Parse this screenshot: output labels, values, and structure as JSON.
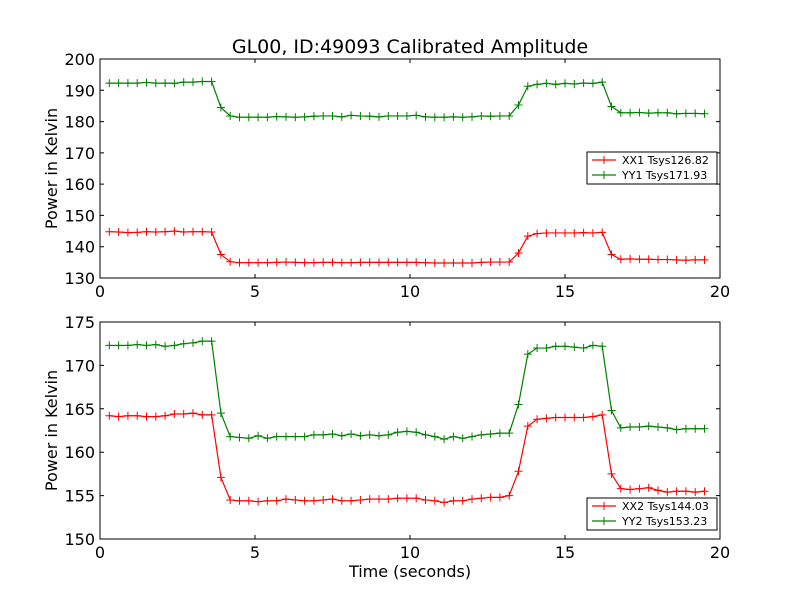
{
  "title": "GL00, ID:49093 Calibrated Amplitude",
  "xlabel": "Time (seconds)",
  "chart_data": [
    {
      "type": "line",
      "ylabel": "Power in Kelvin",
      "xlim": [
        0,
        20
      ],
      "ylim": [
        130,
        200
      ],
      "xticks": [
        0,
        5,
        10,
        15,
        20
      ],
      "yticks": [
        130,
        140,
        150,
        160,
        170,
        180,
        190,
        200
      ],
      "grid": false,
      "legend": "center-right",
      "x": [
        0.3,
        0.6,
        0.9,
        1.2,
        1.5,
        1.8,
        2.1,
        2.4,
        2.7,
        3.0,
        3.3,
        3.6,
        3.9,
        4.2,
        4.5,
        4.8,
        5.1,
        5.4,
        5.7,
        6.0,
        6.3,
        6.6,
        6.9,
        7.2,
        7.5,
        7.8,
        8.1,
        8.4,
        8.7,
        9.0,
        9.3,
        9.6,
        9.9,
        10.2,
        10.5,
        10.8,
        11.1,
        11.4,
        11.7,
        12.0,
        12.3,
        12.6,
        12.9,
        13.2,
        13.5,
        13.8,
        14.1,
        14.4,
        14.7,
        15.0,
        15.3,
        15.6,
        15.9,
        16.2,
        16.5,
        16.8,
        17.1,
        17.4,
        17.7,
        18.0,
        18.3,
        18.6,
        18.9,
        19.2,
        19.5
      ],
      "series": [
        {
          "name": "XX1 Tsys126.82",
          "color": "#ff0000",
          "values": [
            144.8,
            144.7,
            144.5,
            144.6,
            144.8,
            144.7,
            144.8,
            145.0,
            144.7,
            144.8,
            144.8,
            144.7,
            137.5,
            135.2,
            134.9,
            134.9,
            134.9,
            134.9,
            135.0,
            135.1,
            135.0,
            134.9,
            134.9,
            135.0,
            135.0,
            134.9,
            134.9,
            135.0,
            135.0,
            135.0,
            135.0,
            135.0,
            135.0,
            135.0,
            134.9,
            134.8,
            134.8,
            134.8,
            134.8,
            134.8,
            135.0,
            135.1,
            135.1,
            135.1,
            138.0,
            143.4,
            144.2,
            144.4,
            144.4,
            144.4,
            144.4,
            144.5,
            144.4,
            144.6,
            137.5,
            136.0,
            136.1,
            136.0,
            136.0,
            135.9,
            135.9,
            135.8,
            135.7,
            135.8,
            135.8
          ]
        },
        {
          "name": "YY1 Tsys171.93",
          "color": "#008000",
          "values": [
            192.3,
            192.3,
            192.3,
            192.3,
            192.5,
            192.3,
            192.3,
            192.2,
            192.6,
            192.6,
            192.8,
            192.8,
            184.5,
            181.8,
            181.4,
            181.4,
            181.4,
            181.4,
            181.6,
            181.5,
            181.4,
            181.5,
            181.7,
            181.8,
            181.8,
            181.5,
            182.0,
            181.8,
            181.7,
            181.5,
            181.8,
            181.8,
            181.8,
            182.0,
            181.5,
            181.4,
            181.4,
            181.5,
            181.4,
            181.5,
            181.8,
            181.7,
            181.8,
            181.8,
            185.3,
            191.3,
            191.9,
            192.2,
            191.9,
            192.2,
            192.0,
            192.3,
            192.2,
            192.6,
            184.8,
            182.8,
            182.8,
            182.9,
            182.7,
            182.8,
            182.8,
            182.5,
            182.6,
            182.6,
            182.5
          ]
        }
      ]
    },
    {
      "type": "line",
      "ylabel": "Power in Kelvin",
      "xlim": [
        0,
        20
      ],
      "ylim": [
        150,
        175
      ],
      "xticks": [
        0,
        5,
        10,
        15,
        20
      ],
      "yticks": [
        150,
        155,
        160,
        165,
        170,
        175
      ],
      "grid": false,
      "legend": "bottom-right",
      "x": [
        0.3,
        0.6,
        0.9,
        1.2,
        1.5,
        1.8,
        2.1,
        2.4,
        2.7,
        3.0,
        3.3,
        3.6,
        3.9,
        4.2,
        4.5,
        4.8,
        5.1,
        5.4,
        5.7,
        6.0,
        6.3,
        6.6,
        6.9,
        7.2,
        7.5,
        7.8,
        8.1,
        8.4,
        8.7,
        9.0,
        9.3,
        9.6,
        9.9,
        10.2,
        10.5,
        10.8,
        11.1,
        11.4,
        11.7,
        12.0,
        12.3,
        12.6,
        12.9,
        13.2,
        13.5,
        13.8,
        14.1,
        14.4,
        14.7,
        15.0,
        15.3,
        15.6,
        15.9,
        16.2,
        16.5,
        16.8,
        17.1,
        17.4,
        17.7,
        18.0,
        18.3,
        18.6,
        18.9,
        19.2,
        19.5
      ],
      "series": [
        {
          "name": "XX2 Tsys144.03",
          "color": "#ff0000",
          "values": [
            164.2,
            164.1,
            164.2,
            164.2,
            164.1,
            164.1,
            164.2,
            164.4,
            164.4,
            164.5,
            164.3,
            164.3,
            157.1,
            154.5,
            154.4,
            154.4,
            154.3,
            154.4,
            154.4,
            154.6,
            154.5,
            154.4,
            154.4,
            154.5,
            154.6,
            154.4,
            154.4,
            154.5,
            154.6,
            154.6,
            154.6,
            154.7,
            154.7,
            154.7,
            154.5,
            154.4,
            154.2,
            154.4,
            154.4,
            154.6,
            154.7,
            154.8,
            154.8,
            155.0,
            157.8,
            163.0,
            163.8,
            163.9,
            164.0,
            164.0,
            164.0,
            164.0,
            164.1,
            164.3,
            157.5,
            155.8,
            155.7,
            155.8,
            155.9,
            155.6,
            155.4,
            155.5,
            155.5,
            155.4,
            155.5
          ]
        },
        {
          "name": "YY2 Tsys153.23",
          "color": "#008000",
          "values": [
            172.3,
            172.3,
            172.3,
            172.4,
            172.3,
            172.4,
            172.2,
            172.3,
            172.5,
            172.6,
            172.8,
            172.8,
            164.5,
            161.8,
            161.7,
            161.6,
            161.9,
            161.6,
            161.8,
            161.8,
            161.8,
            161.8,
            162.0,
            162.0,
            162.1,
            161.9,
            162.1,
            161.9,
            162.0,
            161.9,
            162.0,
            162.3,
            162.4,
            162.3,
            162.0,
            161.8,
            161.5,
            161.8,
            161.6,
            161.8,
            162.0,
            162.1,
            162.2,
            162.2,
            165.5,
            171.3,
            172.0,
            172.0,
            172.2,
            172.2,
            172.1,
            172.0,
            172.3,
            172.2,
            164.8,
            162.8,
            162.9,
            162.9,
            163.0,
            162.9,
            162.8,
            162.6,
            162.7,
            162.7,
            162.7
          ]
        }
      ]
    }
  ]
}
